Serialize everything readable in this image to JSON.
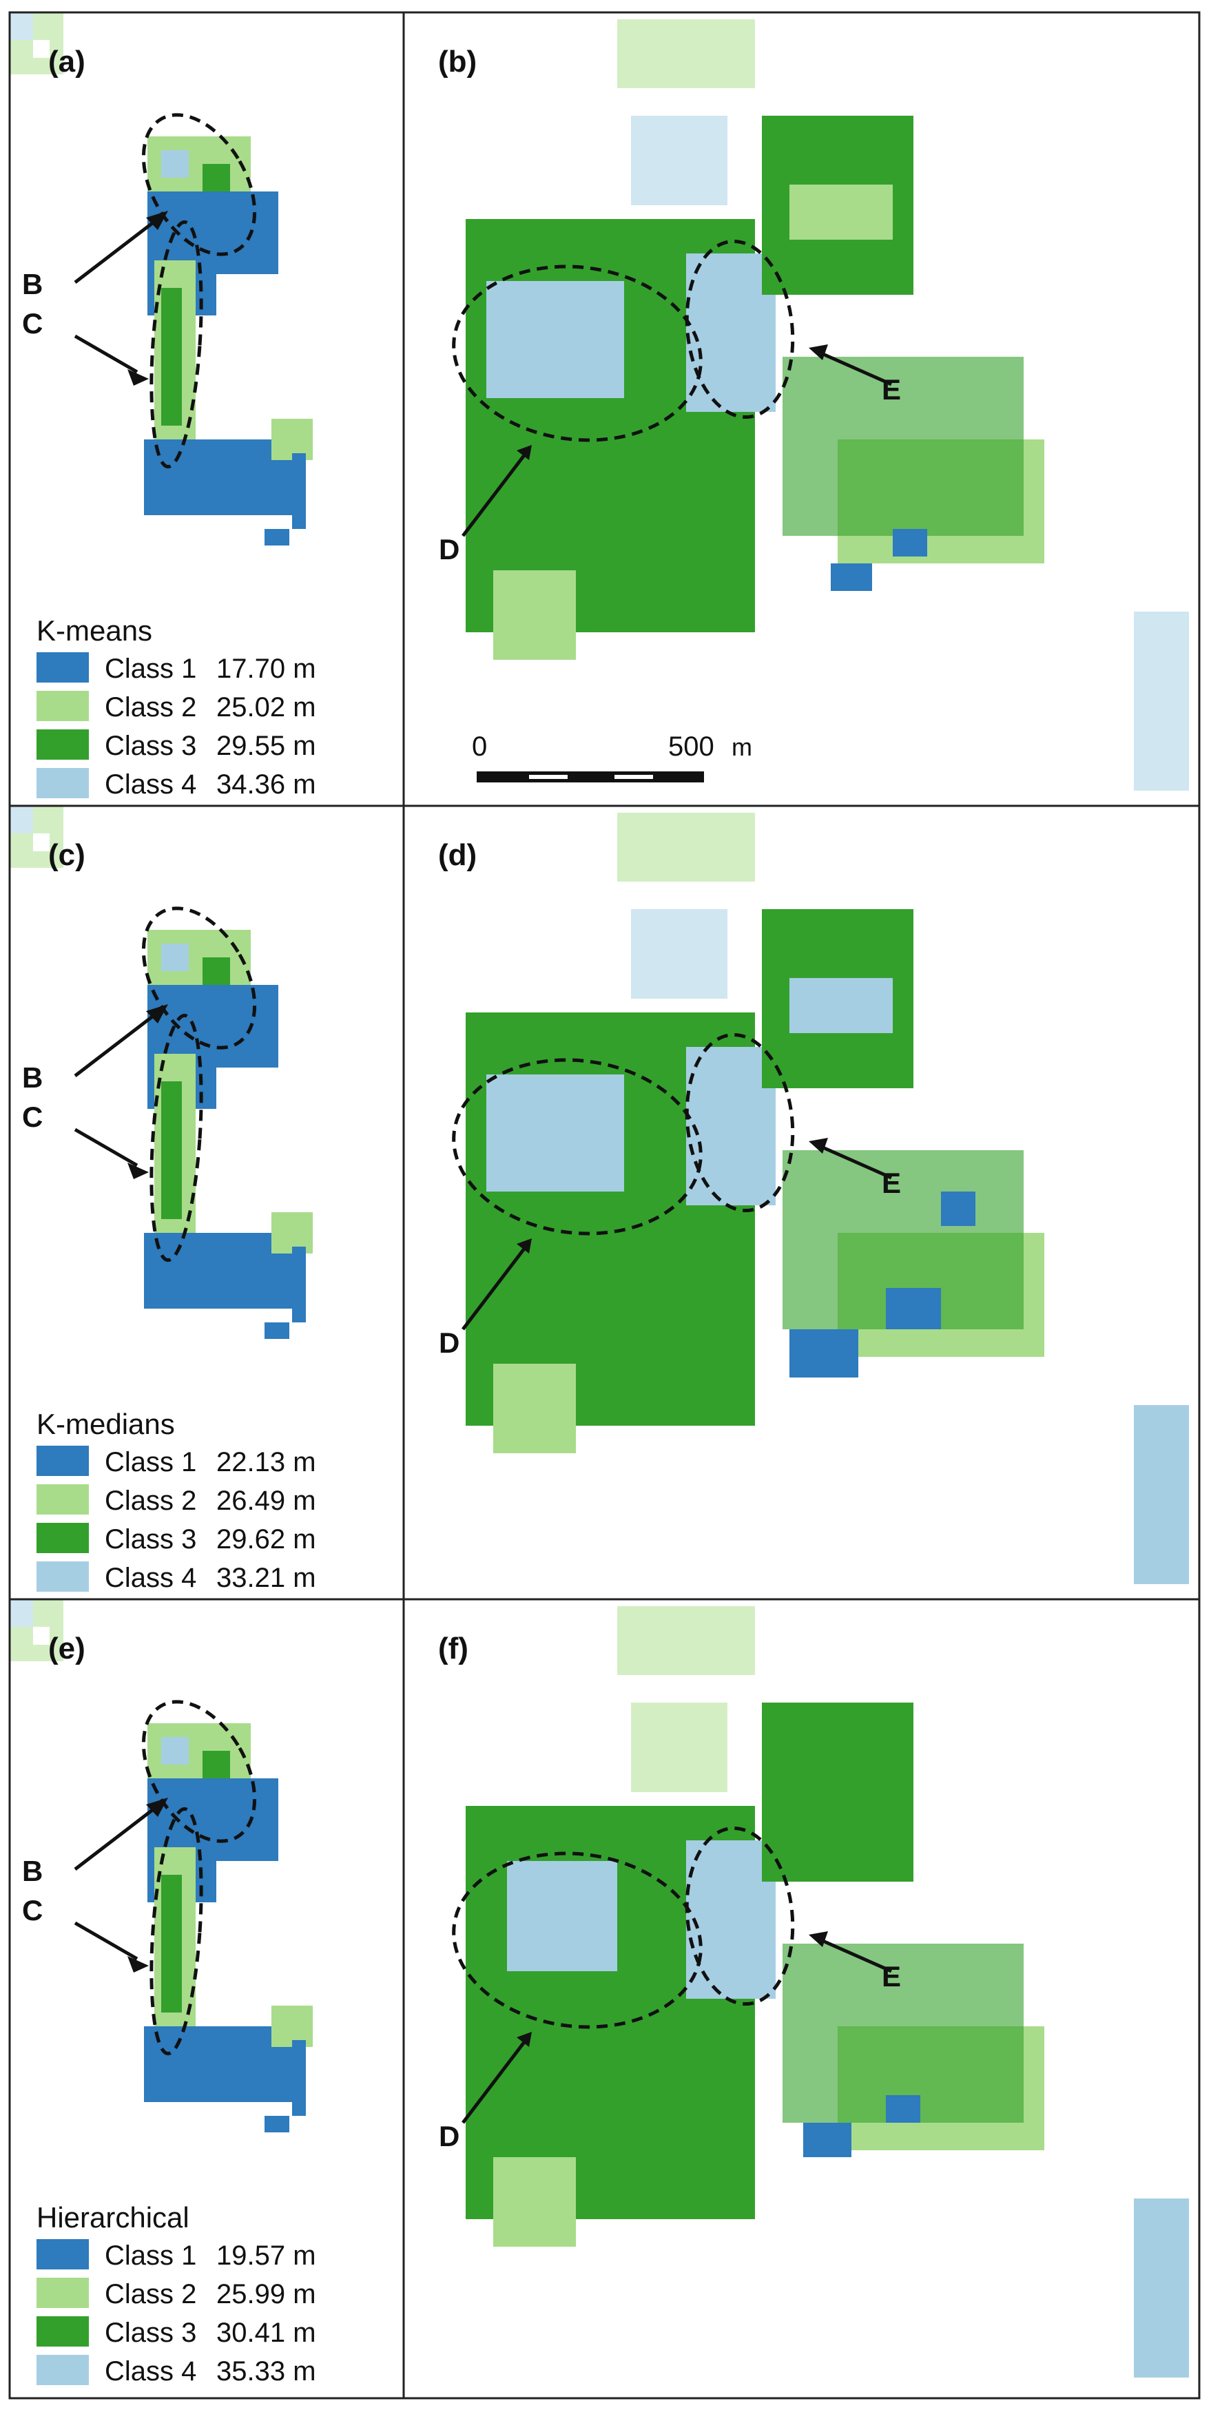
{
  "colors": {
    "class1": "#2e7bbd",
    "class2": "#a8dc8a",
    "class3": "#33a02c",
    "class4": "#a6cee3",
    "faded_class2": "#d4eec4",
    "faded_class4": "#d0e6f1",
    "frame": "#222222"
  },
  "rows": [
    {
      "left_label": "(a)",
      "right_label": "(b)",
      "legend": {
        "title": "K-means",
        "entries": [
          {
            "class": "Class 1",
            "value": "17.70 m",
            "color": "#2e7bbd"
          },
          {
            "class": "Class 2",
            "value": "25.02 m",
            "color": "#a8dc8a"
          },
          {
            "class": "Class 3",
            "value": "29.55 m",
            "color": "#33a02c"
          },
          {
            "class": "Class 4",
            "value": "34.36 m",
            "color": "#a6cee3"
          }
        ]
      }
    },
    {
      "left_label": "(c)",
      "right_label": "(d)",
      "legend": {
        "title": "K-medians",
        "entries": [
          {
            "class": "Class 1",
            "value": "22.13 m",
            "color": "#2e7bbd"
          },
          {
            "class": "Class 2",
            "value": "26.49 m",
            "color": "#a8dc8a"
          },
          {
            "class": "Class 3",
            "value": "29.62 m",
            "color": "#33a02c"
          },
          {
            "class": "Class 4",
            "value": "33.21 m",
            "color": "#a6cee3"
          }
        ]
      }
    },
    {
      "left_label": "(e)",
      "right_label": "(f)",
      "legend": {
        "title": "Hierarchical",
        "entries": [
          {
            "class": "Class 1",
            "value": "19.57 m",
            "color": "#2e7bbd"
          },
          {
            "class": "Class 2",
            "value": "25.99 m",
            "color": "#a8dc8a"
          },
          {
            "class": "Class 3",
            "value": "30.41 m",
            "color": "#33a02c"
          },
          {
            "class": "Class 4",
            "value": "35.33 m",
            "color": "#a6cee3"
          }
        ]
      }
    }
  ],
  "annotations": {
    "B": "B",
    "C": "C",
    "D": "D",
    "E": "E"
  },
  "scale_bar": {
    "start_label": "0",
    "end_label": "500",
    "unit": "m"
  }
}
